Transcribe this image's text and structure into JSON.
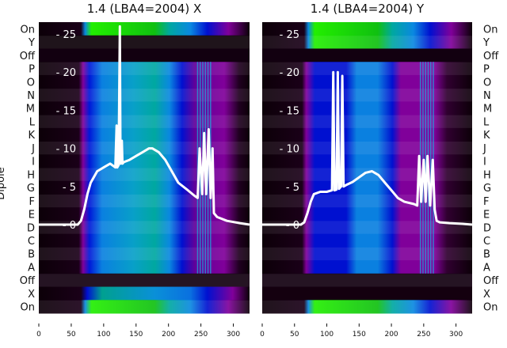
{
  "chart_data": [
    {
      "type": "heatmap",
      "title": "1.4 (LBA4=2004) X",
      "ylabel": "Dipole",
      "row_labels": [
        "On",
        "Y",
        "Off",
        "P",
        "O",
        "N",
        "M",
        "L",
        "K",
        "J",
        "I",
        "H",
        "G",
        "F",
        "E",
        "D",
        "C",
        "B",
        "A",
        "Off",
        "X",
        "On"
      ],
      "x_ticks": [
        "0",
        "50",
        "100",
        "150",
        "200",
        "250",
        "300"
      ],
      "xlim": [
        0,
        325
      ],
      "overlay_y_ticks": [
        "0",
        "5",
        "10",
        "15",
        "20",
        "25"
      ],
      "overlay_ylim": [
        -0.5,
        26
      ],
      "overlay_line": {
        "x": [
          0,
          60,
          65,
          70,
          75,
          80,
          90,
          100,
          110,
          118,
          120,
          121,
          123,
          125,
          126,
          128,
          129,
          131,
          140,
          150,
          160,
          170,
          175,
          185,
          195,
          205,
          215,
          230,
          240,
          245,
          248,
          252,
          255,
          258,
          262,
          265,
          268,
          270,
          275,
          290,
          310,
          325
        ],
        "y": [
          0,
          0,
          0.5,
          2,
          4,
          5.5,
          7,
          7.5,
          8,
          7.5,
          13,
          7.5,
          7.8,
          26,
          8,
          11,
          8,
          8.2,
          8.5,
          9,
          9.5,
          10,
          10,
          9.5,
          8.5,
          7,
          5.5,
          4.5,
          3.8,
          3.5,
          10,
          4,
          12,
          4,
          12.5,
          3.5,
          10,
          1.5,
          1,
          0.5,
          0.2,
          0
        ]
      }
    },
    {
      "type": "heatmap",
      "title": "1.4 (LBA4=2004) Y",
      "row_labels": [
        "On",
        "Y",
        "Off",
        "P",
        "O",
        "N",
        "M",
        "L",
        "K",
        "J",
        "I",
        "H",
        "G",
        "F",
        "E",
        "D",
        "C",
        "B",
        "A",
        "Off",
        "X",
        "On"
      ],
      "x_ticks": [
        "0",
        "50",
        "100",
        "150",
        "200",
        "250",
        "300"
      ],
      "xlim": [
        0,
        325
      ],
      "overlay_y_ticks": [
        "0",
        "5",
        "10",
        "15",
        "20",
        "25"
      ],
      "overlay_ylim": [
        -0.5,
        26
      ],
      "overlay_line": {
        "x": [
          0,
          60,
          65,
          70,
          75,
          80,
          90,
          100,
          108,
          110,
          112,
          115,
          117,
          119,
          122,
          124,
          126,
          130,
          140,
          150,
          160,
          170,
          180,
          190,
          200,
          210,
          220,
          235,
          240,
          243,
          246,
          250,
          253,
          256,
          260,
          264,
          267,
          270,
          275,
          290,
          310,
          325
        ],
        "y": [
          0,
          0,
          0.3,
          1.5,
          3,
          4,
          4.3,
          4.3,
          4.5,
          20,
          4.5,
          4.6,
          20,
          4.7,
          5,
          19.5,
          5,
          5.2,
          5.6,
          6.2,
          6.8,
          7,
          6.5,
          5.5,
          4.5,
          3.5,
          3,
          2.7,
          2.5,
          9,
          3,
          8.5,
          3,
          9,
          2.5,
          8.5,
          2,
          0.5,
          0.3,
          0.2,
          0.1,
          0
        ]
      }
    }
  ],
  "colors": {
    "line": "#ffffff",
    "green": "#22dd00",
    "teal": "#00a8a0",
    "lightblue": "#0a88e0",
    "blue": "#0010d0",
    "purple": "#80009a",
    "black": "#0c0008"
  }
}
